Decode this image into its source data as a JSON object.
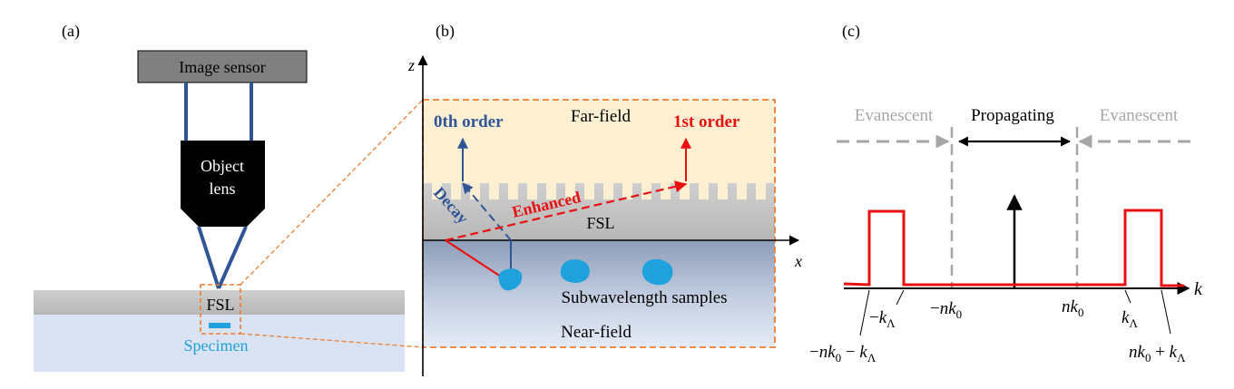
{
  "panel_a": {
    "label": "(a)",
    "sensor_label": "Image sensor",
    "lens_label_1": "Object",
    "lens_label_2": "lens",
    "fsl_label": "FSL",
    "specimen_label": "Specimen"
  },
  "panel_b": {
    "label": "(b)",
    "z_axis": "z",
    "x_axis": "x",
    "far_field": "Far-field",
    "zeroth_order": "0th order",
    "first_order": "1st order",
    "decay": "Decay",
    "enhanced": "Enhanced",
    "fsl": "FSL",
    "samples": "Subwavelength samples",
    "near_field": "Near-field"
  },
  "panel_c": {
    "label": "(c)",
    "evanescent_left": "Evanescent",
    "propagating": "Propagating",
    "evanescent_right": "Evanescent",
    "k_axis": "k",
    "tick_neg_k_lambda": "−k_Λ",
    "tick_neg_nk0": "−nk_0",
    "tick_nk0": "nk_0",
    "tick_k_lambda": "k_Λ",
    "tick_neg_nk0_minus_k_lambda": "−nk_0 − k_Λ",
    "tick_nk0_plus_k_lambda": "nk_0 + k_Λ"
  },
  "colors": {
    "sensor_fill": "#808080",
    "lens_fill": "#000000",
    "beam": "#2F5597",
    "fsl_gray": "#c8c8c8",
    "specimen_bg": "#dae3f3",
    "specimen_blue": "#1fa2dc",
    "far_field_bg": "#fdf0d2",
    "dashed_orange": "#ed7d31",
    "red": "#e81010",
    "evanescent_gray": "#a6a6a6"
  }
}
